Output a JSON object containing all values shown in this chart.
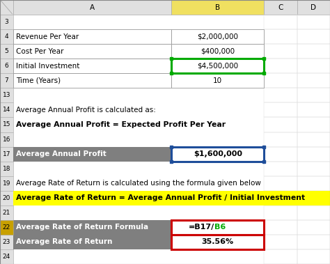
{
  "background": "#ffffff",
  "col_B_header_bg": "#f0e060",
  "col_header_bg": "#e0e0e0",
  "table1_rows": [
    {
      "row": 4,
      "label": "Revenue Per Year",
      "value": "$2,000,000"
    },
    {
      "row": 5,
      "label": "Cost Per Year",
      "value": "$400,000"
    },
    {
      "row": 6,
      "label": "Initial Investment",
      "value": "$4,500,000"
    },
    {
      "row": 7,
      "label": "Time (Years)",
      "value": "10"
    }
  ],
  "text_row14": "Average Annual Profit is calculated as:",
  "text_row15": "Average Annual Profit = Expected Profit Per Year",
  "row17_label": "Average Annual Profit",
  "row17_value": "$1,600,000",
  "text_row19": "Average Rate of Return is calculated using the formula given below",
  "text_row20": "Average Rate of Return = Average Annual Profit / Initial Investment",
  "table3_rows": [
    {
      "row": 22,
      "label": "Average Rate of Return Formula",
      "value_black": "=B17/",
      "value_green": "B6"
    },
    {
      "row": 23,
      "label": "Average Rate of Return",
      "value_black": "35.56%",
      "value_green": ""
    }
  ],
  "gray_bg": "#7f7f7f",
  "gray_text": "#ffffff",
  "yellow_bg": "#ffff00",
  "border_green": "#00aa00",
  "border_blue": "#1f4e9a",
  "border_red": "#cc0000",
  "row22_bg": "#c6a000",
  "visible_rows": [
    0,
    3,
    4,
    5,
    6,
    7,
    13,
    14,
    15,
    16,
    17,
    18,
    19,
    20,
    21,
    22,
    23,
    24
  ],
  "fs": 7.5,
  "fs_bold": 7.8
}
